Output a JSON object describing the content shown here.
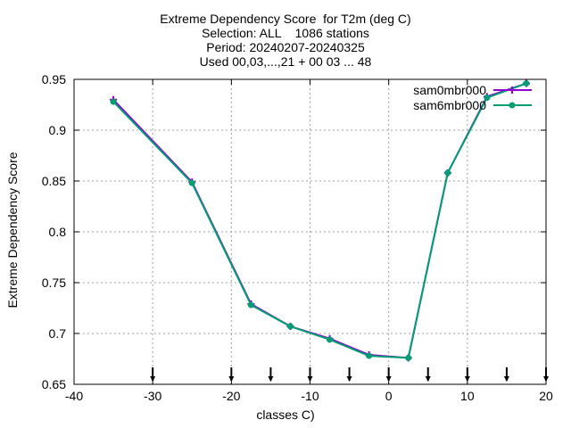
{
  "chart_data": {
    "type": "line",
    "title_lines": [
      "Extreme Dependency Score  for T2m (deg C)",
      "Selection: ALL    1086 stations",
      "Period: 20240207-20240325",
      "Used 00,03,...,21 + 00 03 ... 48"
    ],
    "xlabel": "classes C)",
    "ylabel": "Extreme Dependency Score",
    "xlim": [
      -40,
      20
    ],
    "ylim": [
      0.65,
      0.95
    ],
    "xticks": [
      -40,
      -30,
      -20,
      -10,
      0,
      10,
      20
    ],
    "yticks": [
      0.65,
      0.7,
      0.75,
      0.8,
      0.85,
      0.9,
      0.95
    ],
    "xtick_labels": [
      "-40",
      "-30",
      "-20",
      "-10",
      "0",
      "10",
      "20"
    ],
    "ytick_labels": [
      "0.65",
      "0.7",
      "0.75",
      "0.8",
      "0.85",
      "0.9",
      "0.95"
    ],
    "grid": true,
    "legend_position": "top-right",
    "class_markers_x": [
      -30,
      -20,
      -15,
      -10,
      -5,
      0,
      5,
      10,
      15,
      20
    ],
    "series": [
      {
        "name": "sam0mbr000",
        "color": "#9400d3",
        "marker": "plus",
        "x": [
          -35,
          -25,
          -17.5,
          -12.5,
          -7.5,
          -2.5,
          2.5,
          7.5,
          12.5,
          17.5
        ],
        "y": [
          0.93,
          0.849,
          0.729,
          0.707,
          0.695,
          0.679,
          0.676,
          0.858,
          0.933,
          0.946
        ]
      },
      {
        "name": "sam6mbr000",
        "color": "#009e73",
        "marker": "filled-circle",
        "x": [
          -35,
          -25,
          -17.5,
          -12.5,
          -7.5,
          -2.5,
          2.5,
          7.5,
          12.5,
          17.5
        ],
        "y": [
          0.928,
          0.848,
          0.728,
          0.707,
          0.694,
          0.678,
          0.676,
          0.858,
          0.932,
          0.946
        ]
      }
    ]
  }
}
